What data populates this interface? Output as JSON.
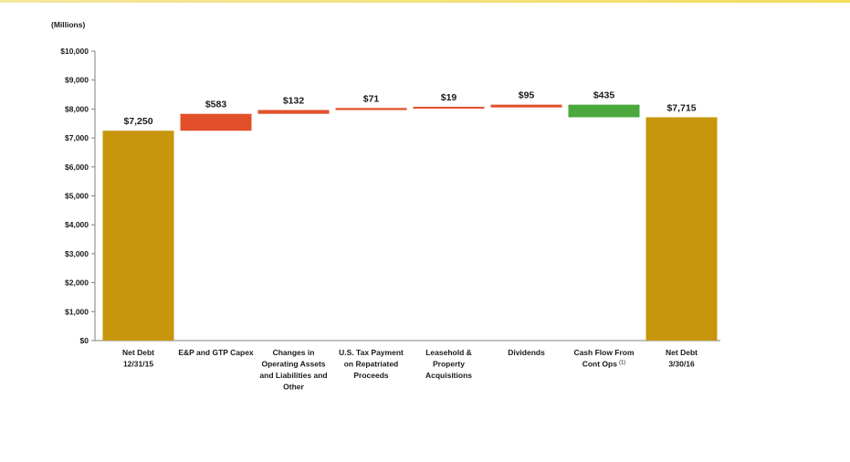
{
  "chart_data": {
    "type": "bar",
    "subtype": "waterfall",
    "unit_label": "(Millions)",
    "ylim": [
      0,
      10000
    ],
    "yticks": [
      "$0",
      "$1,000",
      "$2,000",
      "$3,000",
      "$4,000",
      "$5,000",
      "$6,000",
      "$7,000",
      "$8,000",
      "$9,000",
      "$10,000"
    ],
    "grid": false,
    "legend": "none",
    "categories": [
      {
        "lines": [
          "Net Debt",
          "12/31/15"
        ],
        "footnote": ""
      },
      {
        "lines": [
          "E&P and GTP Capex"
        ],
        "footnote": ""
      },
      {
        "lines": [
          "Changes in",
          "Operating Assets",
          "and Liabilities and",
          "Other"
        ],
        "footnote": ""
      },
      {
        "lines": [
          "U.S. Tax Payment",
          "on Repatriated",
          "Proceeds"
        ],
        "footnote": ""
      },
      {
        "lines": [
          "Leasehold &",
          "Property",
          "Acquisitions"
        ],
        "footnote": ""
      },
      {
        "lines": [
          "Dividends"
        ],
        "footnote": ""
      },
      {
        "lines": [
          "Cash Flow From",
          "Cont Ops"
        ],
        "footnote": "(1)"
      },
      {
        "lines": [
          "Net Debt",
          "3/30/16"
        ],
        "footnote": ""
      }
    ],
    "bars": [
      {
        "kind": "total",
        "start": 0,
        "end": 7250,
        "label": "$7,250"
      },
      {
        "kind": "increase",
        "start": 7250,
        "end": 7833,
        "label": "$583"
      },
      {
        "kind": "increase",
        "start": 7833,
        "end": 7965,
        "label": "$132"
      },
      {
        "kind": "increase",
        "start": 7965,
        "end": 8036,
        "label": "$71"
      },
      {
        "kind": "increase",
        "start": 8036,
        "end": 8055,
        "label": "$19"
      },
      {
        "kind": "increase",
        "start": 8055,
        "end": 8150,
        "label": "$95"
      },
      {
        "kind": "decrease",
        "start": 8150,
        "end": 7715,
        "label": "$435"
      },
      {
        "kind": "total",
        "start": 0,
        "end": 7715,
        "label": "$7,715"
      }
    ],
    "colors": {
      "total": "#c8960c",
      "increase": "#e2502b",
      "decrease": "#4aa83c",
      "axis": "#7f7f7f",
      "text": "#1a1a1a"
    }
  }
}
